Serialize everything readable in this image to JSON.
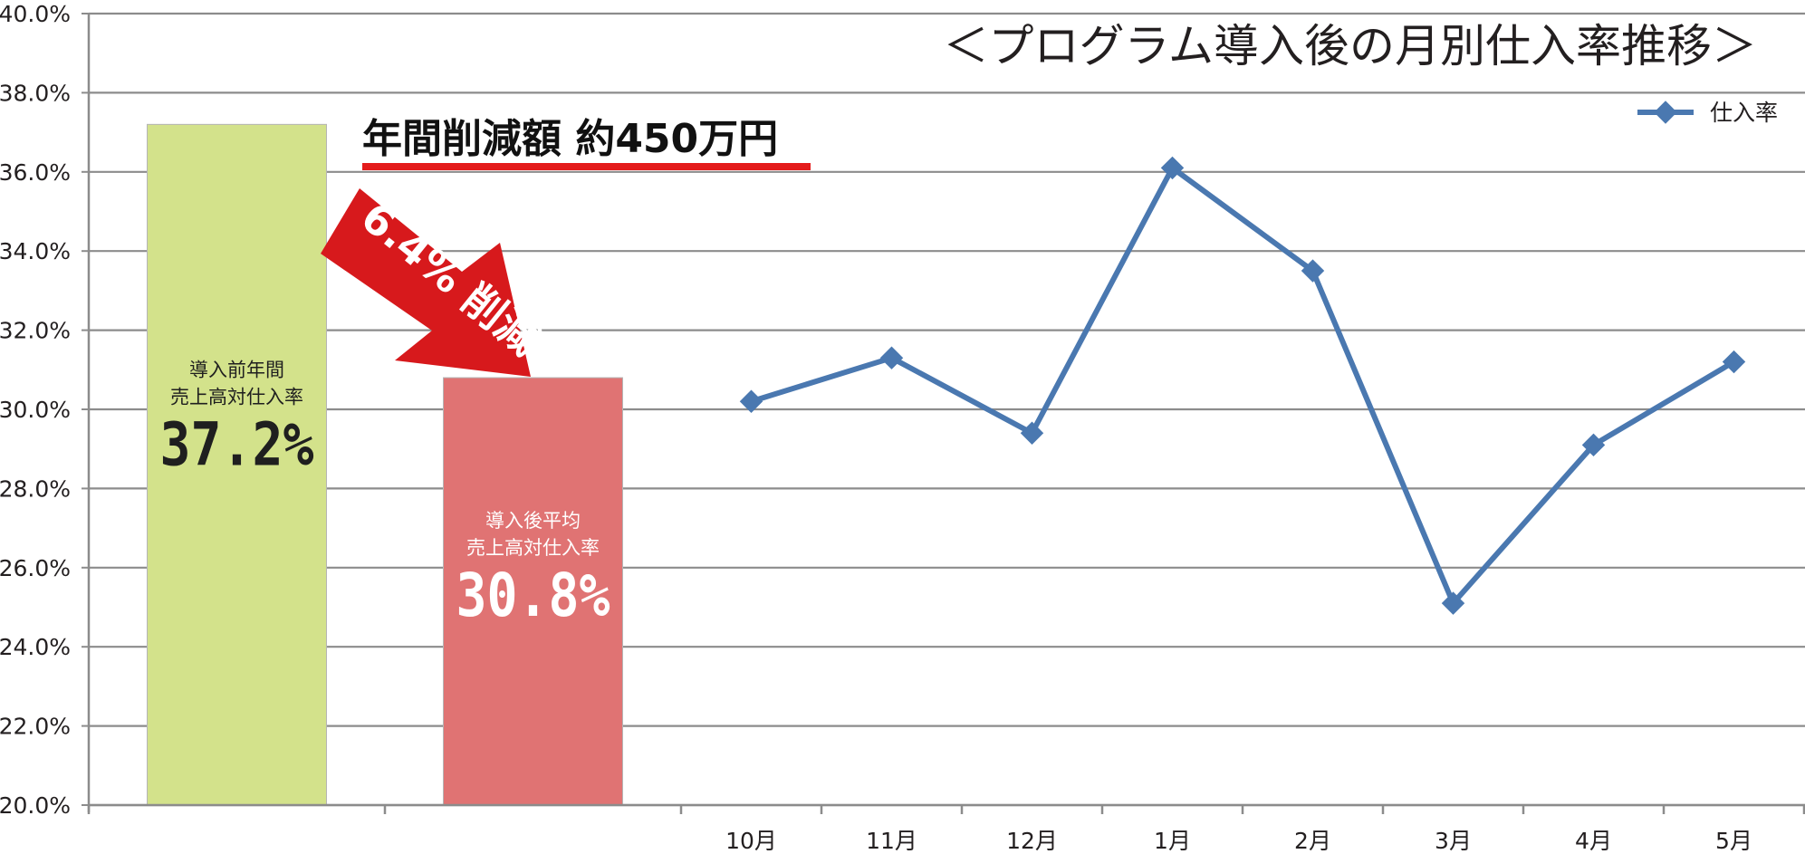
{
  "chart_data": {
    "type": "bar+line",
    "title": "＜プログラム導入後の月別仕入率推移＞",
    "ylim": [
      20.0,
      40.0
    ],
    "ytick_labels": [
      "20.0%",
      "22.0%",
      "24.0%",
      "26.0%",
      "28.0%",
      "30.0%",
      "32.0%",
      "34.0%",
      "36.0%",
      "38.0%",
      "40.0%"
    ],
    "yticks": [
      20,
      22,
      24,
      26,
      28,
      30,
      32,
      34,
      36,
      38,
      40
    ],
    "grid": true,
    "bars": [
      {
        "value": 37.2,
        "color": "#d3e28b",
        "text_color": "#1f1f1f",
        "label_line1": "導入前年間",
        "label_line2": "売上高対仕入率",
        "label_value": "37.2%"
      },
      {
        "value": 30.8,
        "color": "#e07373",
        "text_color": "#ffffff",
        "label_line1": "導入後平均",
        "label_line2": "売上高対仕入率",
        "label_value": "30.8%"
      }
    ],
    "categories": [
      "10月",
      "11月",
      "12月",
      "1月",
      "2月",
      "3月",
      "4月",
      "5月"
    ],
    "series": [
      {
        "name": "仕入率",
        "color": "#4a78b0",
        "values": [
          30.2,
          31.3,
          29.4,
          36.1,
          33.5,
          25.1,
          29.1,
          31.2
        ]
      }
    ],
    "legend_position": "top-right",
    "annotations": {
      "headline": "年間削減額 約450万円",
      "headline_underline_color": "#e41b1b",
      "arrow_text": "6.4% 削減",
      "arrow_color": "#d7191c"
    }
  }
}
